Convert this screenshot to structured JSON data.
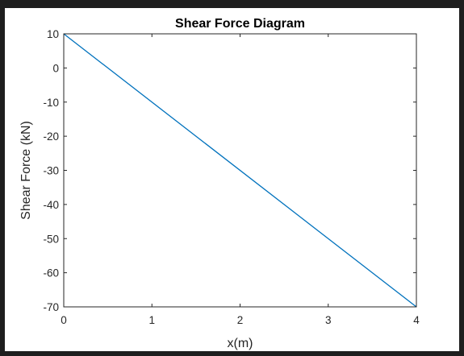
{
  "chart_data": {
    "type": "line",
    "title": "Shear Force Diagram",
    "xlabel": "x(m)",
    "ylabel": "Shear Force (kN)",
    "xlim": [
      0,
      4
    ],
    "ylim": [
      -70,
      10
    ],
    "xticks": [
      0,
      1,
      2,
      3,
      4
    ],
    "yticks": [
      10,
      0,
      -10,
      -20,
      -30,
      -40,
      -50,
      -60,
      -70
    ],
    "grid": false,
    "series": [
      {
        "color": "#0072bd",
        "x": [
          0,
          4
        ],
        "y": [
          10,
          -70
        ]
      }
    ]
  }
}
